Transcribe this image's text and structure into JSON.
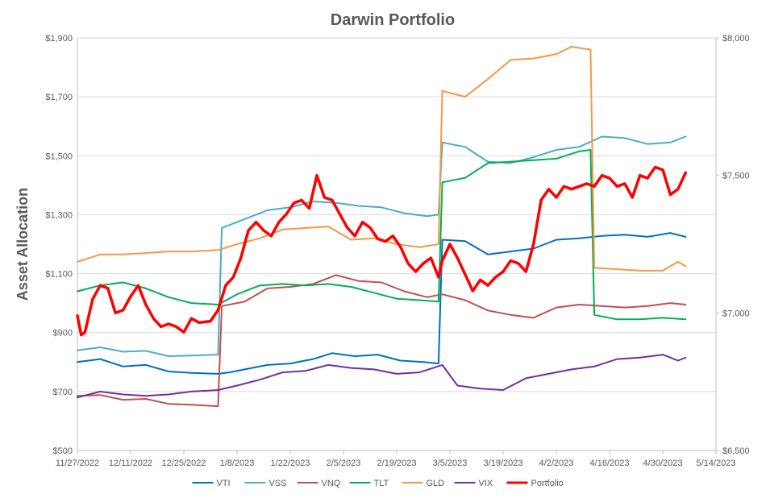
{
  "chart_data": {
    "type": "line",
    "title": "Darwin Portfolio",
    "ylabel": "Asset Allocation",
    "y2label": "",
    "xlabel": "",
    "ylim": [
      500,
      1900
    ],
    "y2lim": [
      6500,
      8000
    ],
    "grid": "horizontal",
    "legend": "bottom",
    "x_ticks": [
      "11/27/2022",
      "12/11/2022",
      "12/25/2022",
      "1/8/2023",
      "1/22/2023",
      "2/5/2023",
      "2/19/2023",
      "3/5/2023",
      "3/19/2023",
      "4/2/2023",
      "4/16/2023",
      "4/30/2023",
      "5/14/2023"
    ],
    "y_ticks": [
      "$500",
      "$700",
      "$900",
      "$1,100",
      "$1,300",
      "$1,500",
      "$1,700",
      "$1,900"
    ],
    "y2_ticks": [
      "$6,500",
      "$7,000",
      "$7,500",
      "$8,000"
    ],
    "series": [
      {
        "name": "VTI",
        "color": "#0070C0",
        "axis": "left",
        "width": 2,
        "points": [
          [
            "11/27/2022",
            800
          ],
          [
            "12/3/2022",
            810
          ],
          [
            "12/9/2022",
            785
          ],
          [
            "12/15/2022",
            790
          ],
          [
            "12/21/2022",
            768
          ],
          [
            "12/27/2022",
            763
          ],
          [
            "1/3/2023",
            760
          ],
          [
            "1/6/2023",
            765
          ],
          [
            "1/10/2023",
            775
          ],
          [
            "1/16/2023",
            790
          ],
          [
            "1/22/2023",
            795
          ],
          [
            "1/28/2023",
            810
          ],
          [
            "2/2/2023",
            830
          ],
          [
            "2/8/2023",
            820
          ],
          [
            "2/14/2023",
            825
          ],
          [
            "2/20/2023",
            805
          ],
          [
            "2/26/2023",
            800
          ],
          [
            "3/2/2023",
            795
          ],
          [
            "3/3/2023",
            1215
          ],
          [
            "3/9/2023",
            1210
          ],
          [
            "3/15/2023",
            1165
          ],
          [
            "3/21/2023",
            1175
          ],
          [
            "3/27/2023",
            1185
          ],
          [
            "4/2/2023",
            1215
          ],
          [
            "4/8/2023",
            1220
          ],
          [
            "4/14/2023",
            1228
          ],
          [
            "4/20/2023",
            1232
          ],
          [
            "4/26/2023",
            1225
          ],
          [
            "5/2/2023",
            1238
          ],
          [
            "5/6/2023",
            1225
          ]
        ]
      },
      {
        "name": "VSS",
        "color": "#4BACC6",
        "axis": "left",
        "width": 2,
        "points": [
          [
            "11/27/2022",
            840
          ],
          [
            "12/3/2022",
            850
          ],
          [
            "12/9/2022",
            835
          ],
          [
            "12/15/2022",
            838
          ],
          [
            "12/21/2022",
            820
          ],
          [
            "12/27/2022",
            822
          ],
          [
            "1/3/2023",
            825
          ],
          [
            "1/4/2023",
            1255
          ],
          [
            "1/10/2023",
            1285
          ],
          [
            "1/16/2023",
            1315
          ],
          [
            "1/22/2023",
            1325
          ],
          [
            "1/28/2023",
            1345
          ],
          [
            "2/3/2023",
            1340
          ],
          [
            "2/9/2023",
            1330
          ],
          [
            "2/15/2023",
            1325
          ],
          [
            "2/21/2023",
            1305
          ],
          [
            "2/27/2023",
            1295
          ],
          [
            "3/2/2023",
            1300
          ],
          [
            "3/3/2023",
            1545
          ],
          [
            "3/9/2023",
            1530
          ],
          [
            "3/15/2023",
            1480
          ],
          [
            "3/21/2023",
            1475
          ],
          [
            "3/27/2023",
            1495
          ],
          [
            "4/2/2023",
            1520
          ],
          [
            "4/8/2023",
            1530
          ],
          [
            "4/14/2023",
            1565
          ],
          [
            "4/20/2023",
            1560
          ],
          [
            "4/26/2023",
            1540
          ],
          [
            "5/2/2023",
            1545
          ],
          [
            "5/6/2023",
            1565
          ]
        ]
      },
      {
        "name": "VNQ",
        "color": "#C0504D",
        "axis": "left",
        "width": 2,
        "points": [
          [
            "11/27/2022",
            685
          ],
          [
            "12/3/2022",
            688
          ],
          [
            "12/9/2022",
            672
          ],
          [
            "12/15/2022",
            675
          ],
          [
            "12/21/2022",
            658
          ],
          [
            "12/27/2022",
            655
          ],
          [
            "1/3/2023",
            650
          ],
          [
            "1/4/2023",
            990
          ],
          [
            "1/10/2023",
            1005
          ],
          [
            "1/16/2023",
            1050
          ],
          [
            "1/22/2023",
            1055
          ],
          [
            "1/28/2023",
            1065
          ],
          [
            "2/3/2023",
            1095
          ],
          [
            "2/9/2023",
            1075
          ],
          [
            "2/15/2023",
            1070
          ],
          [
            "2/21/2023",
            1040
          ],
          [
            "2/27/2023",
            1020
          ],
          [
            "3/3/2023",
            1030
          ],
          [
            "3/9/2023",
            1010
          ],
          [
            "3/15/2023",
            975
          ],
          [
            "3/21/2023",
            960
          ],
          [
            "3/27/2023",
            950
          ],
          [
            "4/2/2023",
            985
          ],
          [
            "4/8/2023",
            995
          ],
          [
            "4/14/2023",
            990
          ],
          [
            "4/20/2023",
            985
          ],
          [
            "4/26/2023",
            990
          ],
          [
            "5/2/2023",
            1000
          ],
          [
            "5/6/2023",
            995
          ]
        ]
      },
      {
        "name": "TLT",
        "color": "#00B050",
        "axis": "left",
        "width": 2,
        "points": [
          [
            "11/27/2022",
            1040
          ],
          [
            "12/3/2022",
            1060
          ],
          [
            "12/9/2022",
            1070
          ],
          [
            "12/15/2022",
            1050
          ],
          [
            "12/21/2022",
            1020
          ],
          [
            "12/27/2022",
            1000
          ],
          [
            "1/3/2023",
            995
          ],
          [
            "1/8/2023",
            1030
          ],
          [
            "1/14/2023",
            1060
          ],
          [
            "1/20/2023",
            1065
          ],
          [
            "1/26/2023",
            1060
          ],
          [
            "2/1/2023",
            1065
          ],
          [
            "2/7/2023",
            1055
          ],
          [
            "2/13/2023",
            1035
          ],
          [
            "2/19/2023",
            1015
          ],
          [
            "2/25/2023",
            1010
          ],
          [
            "3/2/2023",
            1005
          ],
          [
            "3/3/2023",
            1410
          ],
          [
            "3/9/2023",
            1425
          ],
          [
            "3/15/2023",
            1475
          ],
          [
            "3/21/2023",
            1480
          ],
          [
            "3/27/2023",
            1485
          ],
          [
            "4/2/2023",
            1490
          ],
          [
            "4/8/2023",
            1515
          ],
          [
            "4/11/2023",
            1520
          ],
          [
            "4/12/2023",
            960
          ],
          [
            "4/18/2023",
            945
          ],
          [
            "4/24/2023",
            945
          ],
          [
            "4/30/2023",
            950
          ],
          [
            "5/6/2023",
            945
          ]
        ]
      },
      {
        "name": "GLD",
        "color": "#F79646",
        "axis": "left",
        "width": 2,
        "points": [
          [
            "11/27/2022",
            1140
          ],
          [
            "12/3/2022",
            1165
          ],
          [
            "12/9/2022",
            1165
          ],
          [
            "12/15/2022",
            1170
          ],
          [
            "12/21/2022",
            1175
          ],
          [
            "12/27/2022",
            1175
          ],
          [
            "1/3/2023",
            1180
          ],
          [
            "1/8/2023",
            1200
          ],
          [
            "1/14/2023",
            1220
          ],
          [
            "1/20/2023",
            1250
          ],
          [
            "1/26/2023",
            1255
          ],
          [
            "2/1/2023",
            1260
          ],
          [
            "2/7/2023",
            1215
          ],
          [
            "2/13/2023",
            1220
          ],
          [
            "2/19/2023",
            1200
          ],
          [
            "2/25/2023",
            1190
          ],
          [
            "3/2/2023",
            1200
          ],
          [
            "3/3/2023",
            1720
          ],
          [
            "3/9/2023",
            1700
          ],
          [
            "3/15/2023",
            1760
          ],
          [
            "3/21/2023",
            1825
          ],
          [
            "3/27/2023",
            1830
          ],
          [
            "4/2/2023",
            1845
          ],
          [
            "4/6/2023",
            1870
          ],
          [
            "4/11/2023",
            1860
          ],
          [
            "4/12/2023",
            1120
          ],
          [
            "4/18/2023",
            1115
          ],
          [
            "4/24/2023",
            1110
          ],
          [
            "4/30/2023",
            1110
          ],
          [
            "5/4/2023",
            1140
          ],
          [
            "5/6/2023",
            1125
          ]
        ]
      },
      {
        "name": "VIX",
        "color": "#7030A0",
        "axis": "left",
        "width": 2,
        "points": [
          [
            "11/27/2022",
            680
          ],
          [
            "12/3/2022",
            700
          ],
          [
            "12/9/2022",
            690
          ],
          [
            "12/15/2022",
            685
          ],
          [
            "12/21/2022",
            690
          ],
          [
            "12/27/2022",
            700
          ],
          [
            "1/3/2023",
            705
          ],
          [
            "1/8/2023",
            720
          ],
          [
            "1/14/2023",
            740
          ],
          [
            "1/20/2023",
            765
          ],
          [
            "1/26/2023",
            770
          ],
          [
            "2/1/2023",
            790
          ],
          [
            "2/7/2023",
            780
          ],
          [
            "2/13/2023",
            775
          ],
          [
            "2/19/2023",
            760
          ],
          [
            "2/25/2023",
            765
          ],
          [
            "3/3/2023",
            790
          ],
          [
            "3/7/2023",
            720
          ],
          [
            "3/13/2023",
            710
          ],
          [
            "3/19/2023",
            705
          ],
          [
            "3/25/2023",
            745
          ],
          [
            "3/31/2023",
            760
          ],
          [
            "4/6/2023",
            775
          ],
          [
            "4/12/2023",
            785
          ],
          [
            "4/18/2023",
            810
          ],
          [
            "4/24/2023",
            815
          ],
          [
            "4/30/2023",
            825
          ],
          [
            "5/4/2023",
            805
          ],
          [
            "5/6/2023",
            815
          ]
        ]
      },
      {
        "name": "Portfolio",
        "color": "#FF0000",
        "axis": "right",
        "width": 3.5,
        "points": [
          [
            "11/27/2022",
            6990
          ],
          [
            "11/28/2022",
            6920
          ],
          [
            "11/29/2022",
            6930
          ],
          [
            "12/1/2022",
            7050
          ],
          [
            "12/3/2022",
            7100
          ],
          [
            "12/5/2022",
            7090
          ],
          [
            "12/7/2022",
            7000
          ],
          [
            "12/9/2022",
            7010
          ],
          [
            "12/11/2022",
            7060
          ],
          [
            "12/13/2022",
            7100
          ],
          [
            "12/15/2022",
            7030
          ],
          [
            "12/17/2022",
            6980
          ],
          [
            "12/19/2022",
            6950
          ],
          [
            "12/21/2022",
            6960
          ],
          [
            "12/23/2022",
            6950
          ],
          [
            "12/25/2022",
            6930
          ],
          [
            "12/27/2022",
            6980
          ],
          [
            "12/29/2022",
            6965
          ],
          [
            "1/1/2023",
            6970
          ],
          [
            "1/3/2023",
            7010
          ],
          [
            "1/5/2023",
            7100
          ],
          [
            "1/7/2023",
            7130
          ],
          [
            "1/9/2023",
            7200
          ],
          [
            "1/11/2023",
            7300
          ],
          [
            "1/13/2023",
            7330
          ],
          [
            "1/15/2023",
            7300
          ],
          [
            "1/17/2023",
            7280
          ],
          [
            "1/19/2023",
            7330
          ],
          [
            "1/21/2023",
            7360
          ],
          [
            "1/23/2023",
            7400
          ],
          [
            "1/25/2023",
            7410
          ],
          [
            "1/27/2023",
            7380
          ],
          [
            "1/29/2023",
            7500
          ],
          [
            "1/31/2023",
            7420
          ],
          [
            "2/2/2023",
            7410
          ],
          [
            "2/4/2023",
            7360
          ],
          [
            "2/6/2023",
            7310
          ],
          [
            "2/8/2023",
            7280
          ],
          [
            "2/10/2023",
            7330
          ],
          [
            "2/12/2023",
            7310
          ],
          [
            "2/14/2023",
            7270
          ],
          [
            "2/16/2023",
            7260
          ],
          [
            "2/18/2023",
            7280
          ],
          [
            "2/20/2023",
            7240
          ],
          [
            "2/22/2023",
            7180
          ],
          [
            "2/24/2023",
            7150
          ],
          [
            "2/26/2023",
            7180
          ],
          [
            "2/28/2023",
            7200
          ],
          [
            "3/2/2023",
            7130
          ],
          [
            "3/3/2023",
            7190
          ],
          [
            "3/5/2023",
            7250
          ],
          [
            "3/7/2023",
            7200
          ],
          [
            "3/9/2023",
            7140
          ],
          [
            "3/11/2023",
            7080
          ],
          [
            "3/13/2023",
            7120
          ],
          [
            "3/15/2023",
            7100
          ],
          [
            "3/17/2023",
            7130
          ],
          [
            "3/19/2023",
            7150
          ],
          [
            "3/21/2023",
            7190
          ],
          [
            "3/23/2023",
            7180
          ],
          [
            "3/25/2023",
            7150
          ],
          [
            "3/27/2023",
            7250
          ],
          [
            "3/29/2023",
            7410
          ],
          [
            "3/31/2023",
            7450
          ],
          [
            "4/2/2023",
            7420
          ],
          [
            "4/4/2023",
            7460
          ],
          [
            "4/6/2023",
            7450
          ],
          [
            "4/8/2023",
            7460
          ],
          [
            "4/10/2023",
            7470
          ],
          [
            "4/12/2023",
            7460
          ],
          [
            "4/14/2023",
            7500
          ],
          [
            "4/16/2023",
            7490
          ],
          [
            "4/18/2023",
            7460
          ],
          [
            "4/20/2023",
            7470
          ],
          [
            "4/22/2023",
            7420
          ],
          [
            "4/24/2023",
            7500
          ],
          [
            "4/26/2023",
            7490
          ],
          [
            "4/28/2023",
            7530
          ],
          [
            "4/30/2023",
            7520
          ],
          [
            "5/2/2023",
            7430
          ],
          [
            "5/4/2023",
            7450
          ],
          [
            "5/6/2023",
            7510
          ]
        ]
      }
    ]
  }
}
